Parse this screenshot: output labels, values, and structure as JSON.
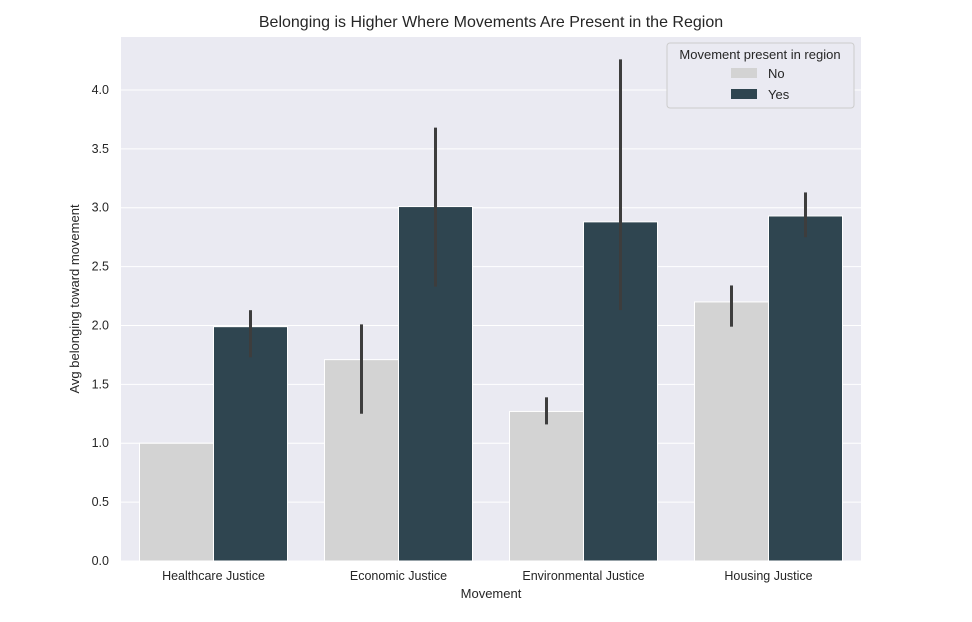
{
  "chart_data": {
    "type": "bar",
    "title": "Belonging is Higher Where Movements Are Present in the Region",
    "xlabel": "Movement",
    "ylabel": "Avg belonging toward movement",
    "categories": [
      "Healthcare Justice",
      "Economic Justice",
      "Environmental Justice",
      "Housing Justice"
    ],
    "ylim": [
      0,
      4.45
    ],
    "yticks": [
      0.0,
      0.5,
      1.0,
      1.5,
      2.0,
      2.5,
      3.0,
      3.5,
      4.0
    ],
    "ytick_labels": [
      "0.0",
      "0.5",
      "1.0",
      "1.5",
      "2.0",
      "2.5",
      "3.0",
      "3.5",
      "4.0"
    ],
    "grid": true,
    "legend": {
      "title": "Movement present in region",
      "placement": "top-right"
    },
    "series": [
      {
        "name": "No",
        "color": "#d3d3d3",
        "values": [
          1.0,
          1.71,
          1.27,
          2.2
        ],
        "ci": [
          [
            1.0,
            1.0
          ],
          [
            1.25,
            2.01
          ],
          [
            1.16,
            1.39
          ],
          [
            1.99,
            2.34
          ]
        ]
      },
      {
        "name": "Yes",
        "color": "#2f4550",
        "values": [
          1.99,
          3.01,
          2.88,
          2.93
        ],
        "ci": [
          [
            1.73,
            2.13
          ],
          [
            2.33,
            3.68
          ],
          [
            2.13,
            4.26
          ],
          [
            2.75,
            3.13
          ]
        ]
      }
    ]
  }
}
